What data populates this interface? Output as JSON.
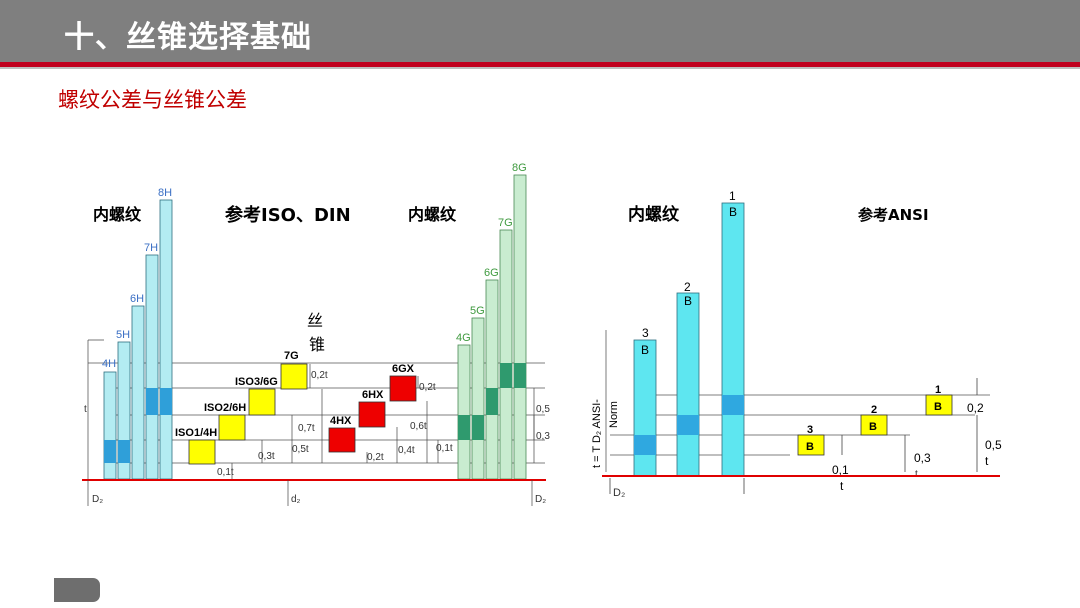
{
  "header": {
    "title": "十、丝锥选择基础"
  },
  "subtitle": "螺纹公差与丝锥公差",
  "left_diagram": {
    "heading_internal_1": "内螺纹",
    "heading_reference": "参考ISO、DIN",
    "heading_internal_2": "内螺纹",
    "tap_label_1": "丝",
    "tap_label_2": "锥",
    "h_bars": [
      "4H",
      "5H",
      "6H",
      "7H",
      "8H"
    ],
    "g_bars": [
      "4G",
      "5G",
      "6G",
      "7G",
      "8G"
    ],
    "iso_boxes": [
      "ISO1/4H",
      "ISO2/6H",
      "ISO3/6G",
      "7G"
    ],
    "hx_boxes": [
      "4HX",
      "6HX",
      "6GX"
    ],
    "dims": [
      "0,1t",
      "0,3t",
      "0,5t",
      "0,7t",
      "0,2t",
      "0,2t",
      "0,4t",
      "0,6t",
      "0,2t",
      "0,1t",
      "0,3t",
      "0,5t"
    ],
    "t_label": "t",
    "bottom_labels": [
      "D₂",
      "d₂",
      "D₂"
    ]
  },
  "right_diagram": {
    "heading_internal": "内螺纹",
    "heading_reference": "参考ANSI",
    "bar_numbers": [
      "3",
      "2",
      "1"
    ],
    "bar_letter": "B",
    "vertical_label_1": "t = T D₂ ANSI-",
    "vertical_label_2": "Norm",
    "boxes": [
      {
        "num": "3",
        "letter": "B"
      },
      {
        "num": "2",
        "letter": "B"
      },
      {
        "num": "1",
        "letter": "B"
      }
    ],
    "dims": [
      "0,1",
      "t",
      "0,3",
      "t",
      "0,2",
      "0,5",
      "t"
    ],
    "bottom_label": "D₂"
  }
}
